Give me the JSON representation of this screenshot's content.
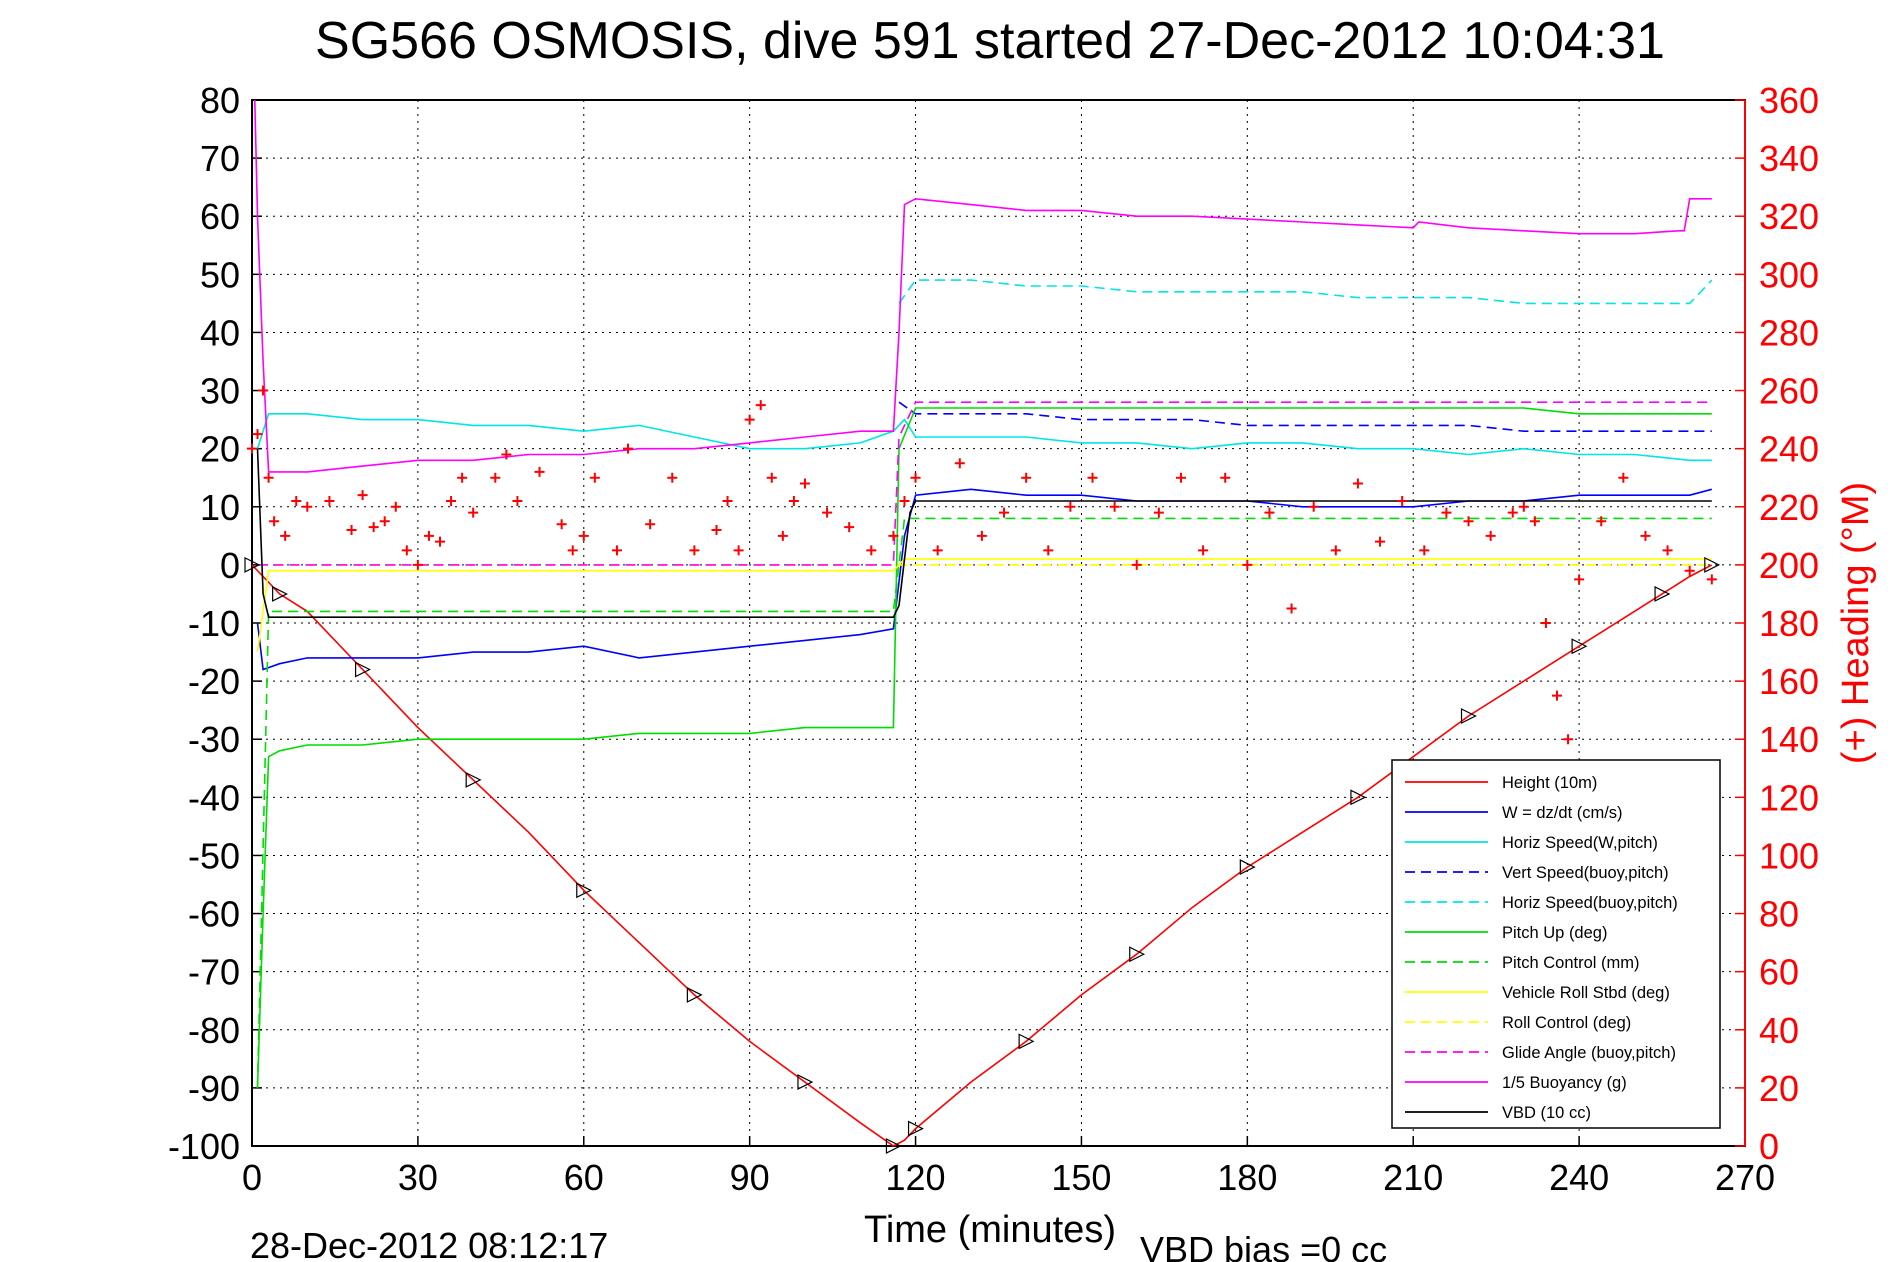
{
  "chart_data": {
    "type": "line",
    "title": "SG566 OSMOSIS, dive 591 started 27-Dec-2012 10:04:31",
    "xlabel": "Time (minutes)",
    "ylabel_right": "(+) Heading (°M)",
    "footer_left": "28-Dec-2012 08:12:17",
    "footer_right": "VBD bias =0 cc",
    "xlim": [
      0,
      270
    ],
    "ylim": [
      -100,
      80
    ],
    "ylim_right": [
      0,
      360
    ],
    "xticks": [
      "0",
      "30",
      "60",
      "90",
      "120",
      "150",
      "180",
      "210",
      "240",
      "270"
    ],
    "yticks": [
      "-100",
      "-90",
      "-80",
      "-70",
      "-60",
      "-50",
      "-40",
      "-30",
      "-20",
      "-10",
      "0",
      "10",
      "20",
      "30",
      "40",
      "50",
      "60",
      "70",
      "80"
    ],
    "yticks_right": [
      "0",
      "20",
      "40",
      "60",
      "80",
      "100",
      "120",
      "140",
      "160",
      "180",
      "200",
      "220",
      "240",
      "260",
      "280",
      "300",
      "320",
      "340",
      "360"
    ],
    "grid": true,
    "legend_position": "bottom-right",
    "series": [
      {
        "name": "Height (10m)",
        "color": "#ff0000",
        "dash": "solid",
        "x": [
          0,
          2,
          5,
          10,
          20,
          30,
          40,
          50,
          60,
          70,
          80,
          90,
          100,
          110,
          116,
          118,
          120,
          130,
          140,
          150,
          160,
          170,
          180,
          190,
          200,
          210,
          220,
          230,
          240,
          250,
          255,
          260,
          264
        ],
        "y": [
          0,
          -2,
          -5,
          -8,
          -18,
          -28,
          -37,
          -46,
          -56,
          -65,
          -74,
          -82,
          -89,
          -96,
          -100,
          -99,
          -97,
          -89,
          -82,
          -74,
          -67,
          -59,
          -52,
          -46,
          -40,
          -33,
          -26,
          -20,
          -14,
          -8,
          -5,
          -2,
          0
        ]
      },
      {
        "name": "W = dz/dt (cm/s)",
        "color": "#0000ff",
        "dash": "solid",
        "x": [
          1,
          2,
          5,
          10,
          20,
          30,
          40,
          50,
          60,
          70,
          80,
          90,
          100,
          110,
          116,
          118,
          120,
          130,
          140,
          150,
          160,
          170,
          180,
          190,
          200,
          210,
          220,
          230,
          240,
          250,
          260,
          264
        ],
        "y": [
          -10,
          -18,
          -17,
          -16,
          -16,
          -16,
          -15,
          -15,
          -14,
          -16,
          -15,
          -14,
          -13,
          -12,
          -11,
          5,
          12,
          13,
          12,
          12,
          11,
          11,
          11,
          10,
          10,
          10,
          11,
          11,
          12,
          12,
          12,
          13
        ]
      },
      {
        "name": "Horiz Speed(W,pitch)",
        "color": "#00e5e5",
        "dash": "solid",
        "x": [
          1,
          3,
          10,
          20,
          30,
          40,
          50,
          60,
          70,
          80,
          90,
          100,
          110,
          116,
          118,
          120,
          130,
          140,
          150,
          160,
          170,
          180,
          190,
          200,
          210,
          220,
          230,
          240,
          250,
          260,
          264
        ],
        "y": [
          20,
          26,
          26,
          25,
          25,
          24,
          24,
          23,
          24,
          22,
          20,
          20,
          21,
          23,
          25,
          22,
          22,
          22,
          21,
          21,
          20,
          21,
          21,
          20,
          20,
          19,
          20,
          19,
          19,
          18,
          18
        ]
      },
      {
        "name": "Vert Speed(buoy,pitch)",
        "color": "#0000ff",
        "dash": "dashed",
        "x": [
          117,
          120,
          130,
          140,
          150,
          160,
          170,
          180,
          190,
          200,
          210,
          220,
          230,
          240,
          250,
          260,
          264
        ],
        "y": [
          28,
          26,
          26,
          26,
          25,
          25,
          25,
          24,
          24,
          24,
          24,
          24,
          23,
          23,
          23,
          23,
          23
        ]
      },
      {
        "name": "Horiz Speed(buoy,pitch)",
        "color": "#00e5e5",
        "dash": "dashed",
        "x": [
          117,
          120,
          130,
          140,
          150,
          160,
          170,
          180,
          190,
          200,
          210,
          220,
          230,
          240,
          250,
          260,
          264
        ],
        "y": [
          45,
          49,
          49,
          48,
          48,
          47,
          47,
          47,
          47,
          46,
          46,
          46,
          45,
          45,
          45,
          45,
          49
        ]
      },
      {
        "name": "Pitch Up (deg)",
        "color": "#00dd00",
        "dash": "solid",
        "x": [
          1,
          2,
          3,
          5,
          10,
          20,
          30,
          40,
          50,
          60,
          70,
          80,
          90,
          100,
          110,
          116,
          117,
          120,
          130,
          140,
          150,
          160,
          170,
          180,
          190,
          200,
          210,
          220,
          230,
          240,
          250,
          260,
          264
        ],
        "y": [
          -90,
          -60,
          -33,
          -32,
          -31,
          -31,
          -30,
          -30,
          -30,
          -30,
          -29,
          -29,
          -29,
          -28,
          -28,
          -28,
          20,
          27,
          27,
          27,
          27,
          27,
          27,
          27,
          27,
          27,
          27,
          27,
          27,
          26,
          26,
          26,
          26
        ]
      },
      {
        "name": "Pitch Control (mm)",
        "color": "#00dd00",
        "dash": "dashed",
        "x": [
          1,
          3,
          10,
          20,
          40,
          60,
          80,
          100,
          116,
          118,
          130,
          150,
          170,
          190,
          210,
          230,
          250,
          264
        ],
        "y": [
          -90,
          -8,
          -8,
          -8,
          -8,
          -8,
          -8,
          -8,
          -8,
          8,
          8,
          8,
          8,
          8,
          8,
          8,
          8,
          8
        ]
      },
      {
        "name": "Vehicle Roll Stbd (deg)",
        "color": "#ffff00",
        "dash": "solid",
        "x": [
          1,
          3,
          10,
          20,
          40,
          60,
          80,
          100,
          116,
          118,
          130,
          150,
          170,
          190,
          210,
          230,
          250,
          264
        ],
        "y": [
          -15,
          -1,
          -1,
          -1,
          -1,
          -1,
          -1,
          -1,
          -1,
          1,
          1,
          1,
          1,
          1,
          1,
          1,
          1,
          1
        ]
      },
      {
        "name": "Roll Control (deg)",
        "color": "#ffff00",
        "dash": "dashed",
        "x": [
          1,
          5,
          20,
          40,
          60,
          80,
          100,
          116,
          118,
          130,
          150,
          170,
          190,
          210,
          230,
          250,
          264
        ],
        "y": [
          0,
          0,
          0,
          0,
          0,
          0,
          0,
          0,
          0,
          0,
          0,
          0,
          0,
          0,
          0,
          0,
          0
        ]
      },
      {
        "name": "Glide Angle (buoy,pitch)",
        "color": "#ff00ff",
        "dash": "dashed",
        "x": [
          1,
          5,
          20,
          40,
          60,
          80,
          100,
          116,
          117,
          120,
          130,
          140,
          150,
          160,
          170,
          180,
          190,
          200,
          210,
          220,
          230,
          240,
          250,
          260,
          264
        ],
        "y": [
          0,
          0,
          0,
          0,
          0,
          0,
          0,
          0,
          22,
          28,
          28,
          28,
          28,
          28,
          28,
          28,
          28,
          28,
          28,
          28,
          28,
          28,
          28,
          28,
          28
        ]
      },
      {
        "name": "1/5 Buoyancy (g)",
        "color": "#ff00ff",
        "dash": "solid",
        "x": [
          0.5,
          1,
          2,
          3,
          5,
          10,
          20,
          30,
          40,
          50,
          60,
          70,
          80,
          90,
          100,
          110,
          116,
          117,
          118,
          120,
          130,
          140,
          150,
          160,
          170,
          180,
          190,
          200,
          210,
          211,
          220,
          230,
          240,
          250,
          258,
          259,
          260,
          264
        ],
        "y": [
          80,
          60,
          35,
          16,
          16,
          16,
          17,
          18,
          18,
          19,
          19,
          20,
          20,
          21,
          22,
          23,
          23,
          40,
          62,
          63,
          62,
          61,
          61,
          60,
          60,
          59.5,
          59,
          58.5,
          58,
          59,
          58,
          57.5,
          57,
          57,
          57.5,
          57.5,
          63,
          63
        ]
      },
      {
        "name": "VBD (10 cc)",
        "color": "#000000",
        "dash": "solid",
        "x": [
          1,
          2,
          3,
          116,
          117,
          118,
          119,
          120,
          264
        ],
        "y": [
          20,
          -5,
          -9,
          -9,
          -7,
          1,
          9,
          11,
          11
        ]
      },
      {
        "name": "Heading (°M)",
        "color": "#ff0000",
        "dash": "markers",
        "axis": "right",
        "x": [
          0,
          1,
          2,
          3,
          4,
          6,
          8,
          10,
          14,
          18,
          20,
          22,
          24,
          26,
          28,
          30,
          32,
          34,
          36,
          38,
          40,
          44,
          46,
          48,
          52,
          56,
          58,
          60,
          62,
          66,
          68,
          72,
          76,
          80,
          84,
          86,
          88,
          90,
          92,
          94,
          96,
          98,
          100,
          104,
          108,
          112,
          116,
          118,
          120,
          124,
          128,
          132,
          136,
          140,
          144,
          148,
          152,
          156,
          160,
          164,
          168,
          172,
          176,
          180,
          184,
          188,
          192,
          196,
          200,
          204,
          208,
          212,
          216,
          220,
          224,
          228,
          230,
          232,
          234,
          236,
          238,
          240,
          244,
          248,
          252,
          256,
          260,
          264
        ],
        "y": [
          240,
          245,
          260,
          230,
          215,
          210,
          222,
          220,
          222,
          212,
          224,
          213,
          215,
          220,
          205,
          200,
          210,
          208,
          222,
          230,
          218,
          230,
          238,
          222,
          232,
          214,
          205,
          210,
          230,
          205,
          240,
          214,
          230,
          205,
          212,
          222,
          205,
          250,
          255,
          230,
          210,
          222,
          228,
          218,
          213,
          205,
          210,
          222,
          230,
          205,
          235,
          210,
          218,
          230,
          205,
          220,
          230,
          220,
          200,
          218,
          230,
          205,
          230,
          200,
          218,
          185,
          220,
          205,
          228,
          208,
          222,
          205,
          218,
          215,
          210,
          218,
          220,
          215,
          180,
          155,
          140,
          195,
          215,
          230,
          210,
          205,
          198,
          195
        ]
      }
    ]
  }
}
